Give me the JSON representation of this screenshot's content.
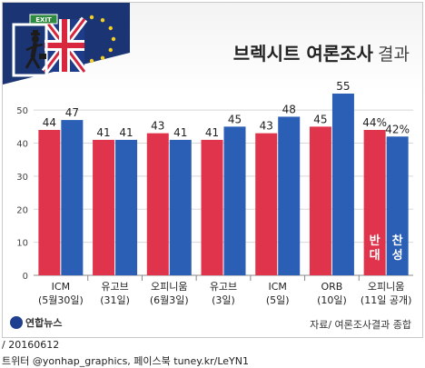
{
  "header": {
    "title": "브렉시트 여론조사",
    "title_suffix": "결과",
    "sign_text": "EXIT"
  },
  "chart_data": {
    "type": "bar",
    "title": "브렉시트 여론조사 결과",
    "categories": [
      {
        "line1": "ICM",
        "line2": "(5월30일)"
      },
      {
        "line1": "유고브",
        "line2": "(31일)"
      },
      {
        "line1": "오피니움",
        "line2": "(6월3일)"
      },
      {
        "line1": "유고브",
        "line2": "(3일)"
      },
      {
        "line1": "ICM",
        "line2": "(5일)"
      },
      {
        "line1": "ORB",
        "line2": "(10일)"
      },
      {
        "line1": "오피니움",
        "line2": "(11일 공개)"
      }
    ],
    "series": [
      {
        "name": "반대",
        "color": "#e0344d",
        "values": [
          44,
          41,
          43,
          41,
          43,
          45,
          44
        ]
      },
      {
        "name": "찬성",
        "color": "#2b5fb5",
        "values": [
          47,
          41,
          41,
          45,
          48,
          55,
          42
        ]
      }
    ],
    "value_labels": [
      [
        "44",
        "41",
        "43",
        "41",
        "43",
        "45",
        "44%"
      ],
      [
        "47",
        "41",
        "41",
        "45",
        "48",
        "55",
        "42%"
      ]
    ],
    "legend_inline": {
      "against": "반대",
      "for": "찬성"
    },
    "y_ticks": [
      "0",
      "10",
      "20",
      "30",
      "40",
      "50"
    ],
    "ylim": [
      0,
      55
    ],
    "grid": true
  },
  "footer": {
    "logo": "연합뉴스",
    "source": "자료/ 여론조사결과 종합"
  },
  "meta": {
    "date": "/ 20160612",
    "social": "트위터 @yonhap_graphics, 페이스북 tuney.kr/LeYN1"
  }
}
